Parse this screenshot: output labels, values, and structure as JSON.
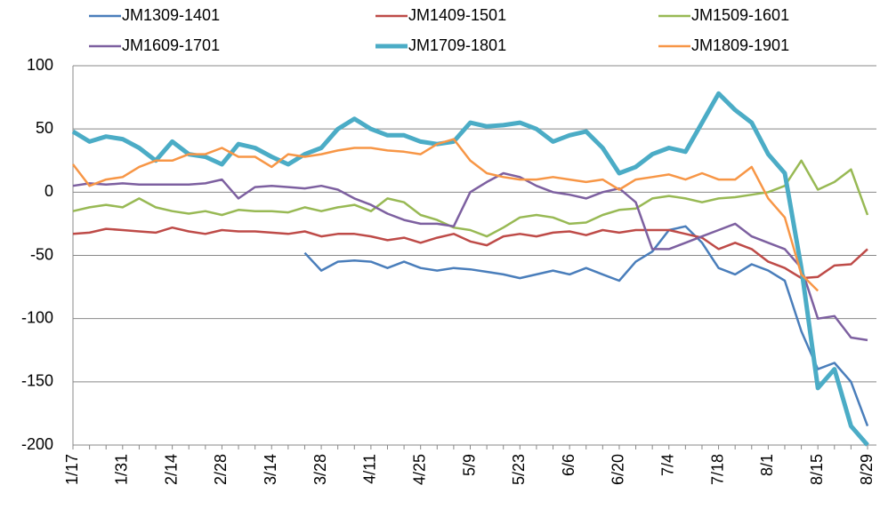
{
  "chart_data": {
    "type": "line",
    "categories": [
      "1/17",
      null,
      null,
      "1/31",
      null,
      null,
      "2/14",
      null,
      null,
      "2/28",
      null,
      null,
      "3/14",
      null,
      null,
      "3/28",
      null,
      null,
      "4/11",
      null,
      null,
      "4/25",
      null,
      null,
      "5/9",
      null,
      null,
      "5/23",
      null,
      null,
      "6/6",
      null,
      null,
      "6/20",
      null,
      null,
      "7/4",
      null,
      null,
      "7/18",
      null,
      null,
      "8/1",
      null,
      null,
      "8/15",
      null,
      null,
      "8/29"
    ],
    "series": [
      {
        "name": "JM1309-1401",
        "color": "#4a7ebb",
        "width": 2.5,
        "values": [
          null,
          null,
          null,
          null,
          null,
          null,
          null,
          null,
          null,
          null,
          null,
          null,
          null,
          null,
          -48,
          -62,
          -55,
          -54,
          -55,
          -60,
          -55,
          -60,
          -62,
          -60,
          -61,
          -63,
          -65,
          -68,
          -65,
          -62,
          -65,
          -60,
          -65,
          -70,
          -55,
          -47,
          -30,
          -27,
          -40,
          -60,
          -65,
          -57,
          -62,
          -70,
          -110,
          -140,
          -135,
          -150,
          -185
        ]
      },
      {
        "name": "JM1409-1501",
        "color": "#be4b48",
        "width": 2.5,
        "values": [
          -33,
          -32,
          -29,
          -30,
          -31,
          -32,
          -28,
          -31,
          -33,
          -30,
          -31,
          -31,
          -32,
          -33,
          -31,
          -35,
          -33,
          -33,
          -35,
          -38,
          -36,
          -40,
          -36,
          -33,
          -39,
          -42,
          -35,
          -33,
          -35,
          -32,
          -31,
          -34,
          -30,
          -32,
          -30,
          -30,
          -30,
          -33,
          -36,
          -45,
          -40,
          -45,
          -55,
          -60,
          -68,
          -67,
          -58,
          -57,
          -45
        ]
      },
      {
        "name": "JM1509-1601",
        "color": "#98b954",
        "width": 2.5,
        "values": [
          -15,
          -12,
          -10,
          -12,
          -5,
          -12,
          -15,
          -17,
          -15,
          -18,
          -14,
          -15,
          -15,
          -16,
          -12,
          -15,
          -12,
          -10,
          -15,
          -5,
          -8,
          -18,
          -22,
          -28,
          -30,
          -35,
          -28,
          -20,
          -18,
          -20,
          -25,
          -24,
          -18,
          -14,
          -13,
          -5,
          -3,
          -5,
          -8,
          -5,
          -4,
          -2,
          0,
          5,
          25,
          2,
          8,
          18,
          -18
        ]
      },
      {
        "name": "JM1609-1701",
        "color": "#7d60a0",
        "width": 2.5,
        "values": [
          5,
          7,
          6,
          7,
          6,
          6,
          6,
          6,
          7,
          10,
          -5,
          4,
          5,
          4,
          3,
          5,
          2,
          -5,
          -10,
          -17,
          -22,
          -25,
          -25,
          -27,
          0,
          8,
          15,
          12,
          5,
          0,
          -2,
          -5,
          0,
          3,
          -8,
          -45,
          -45,
          -40,
          -35,
          -30,
          -25,
          -35,
          -40,
          -45,
          -60,
          -100,
          -98,
          -115,
          -117
        ]
      },
      {
        "name": "JM1709-1801",
        "color": "#4bacc6",
        "width": 5,
        "values": [
          48,
          40,
          44,
          42,
          35,
          25,
          40,
          30,
          28,
          22,
          38,
          35,
          28,
          22,
          30,
          35,
          50,
          58,
          50,
          45,
          45,
          40,
          38,
          40,
          55,
          52,
          53,
          55,
          50,
          40,
          45,
          48,
          35,
          15,
          20,
          30,
          35,
          32,
          55,
          78,
          65,
          55,
          30,
          15,
          -60,
          -155,
          -140,
          -185,
          -200
        ]
      },
      {
        "name": "JM1809-1901",
        "color": "#f79646",
        "width": 2.5,
        "values": [
          22,
          5,
          10,
          12,
          20,
          25,
          25,
          30,
          30,
          35,
          28,
          28,
          20,
          30,
          28,
          30,
          33,
          35,
          35,
          33,
          32,
          30,
          38,
          42,
          25,
          15,
          12,
          10,
          10,
          12,
          10,
          8,
          10,
          2,
          10,
          12,
          14,
          10,
          15,
          10,
          10,
          20,
          -5,
          -20,
          -65,
          -78,
          null,
          null,
          null
        ]
      }
    ],
    "ylim": [
      -200,
      100
    ],
    "yticks": [
      -200,
      -150,
      -100,
      -50,
      0,
      50,
      100
    ],
    "grid": true
  }
}
